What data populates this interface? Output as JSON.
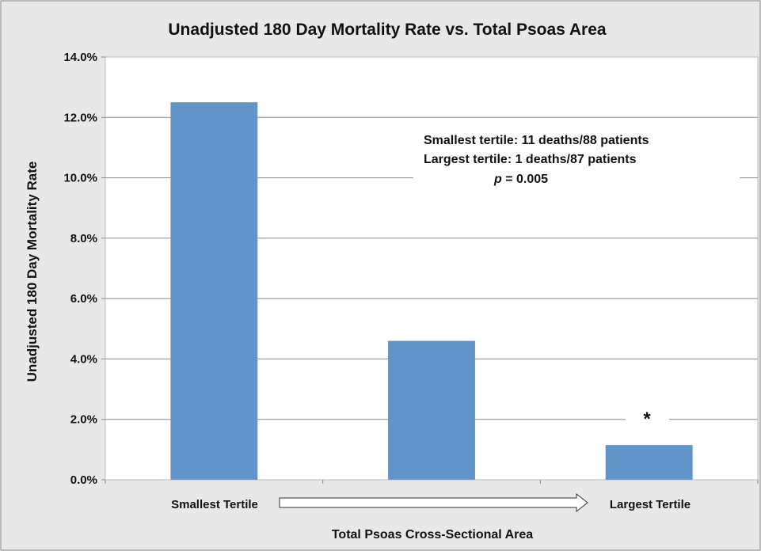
{
  "chart_data": {
    "type": "bar",
    "title": "Unadjusted 180 Day Mortality Rate vs. Total Psoas Area",
    "xlabel": "Total Psoas Cross-Sectional Area",
    "ylabel": "Unadjusted 180 Day Mortality Rate",
    "categories": [
      "Smallest Tertile",
      "",
      "Largest Tertile"
    ],
    "values": [
      0.125,
      0.046,
      0.0115
    ],
    "ylim": [
      0,
      0.14
    ],
    "yticks": [
      0,
      0.02,
      0.04,
      0.06,
      0.08,
      0.1,
      0.12,
      0.14
    ],
    "ytick_labels": [
      "0.0%",
      "2.0%",
      "4.0%",
      "6.0%",
      "8.0%",
      "10.0%",
      "12.0%",
      "14.0%"
    ],
    "grid": true,
    "bar_color": "#6194c8",
    "annotations": {
      "line1": "Smallest tertile: 11 deaths/88 patients",
      "line2": "Largest tertile: 1 deaths/87 patients",
      "p_label": "p",
      "p_value": " = 0.005",
      "significance_marker": "*"
    }
  }
}
